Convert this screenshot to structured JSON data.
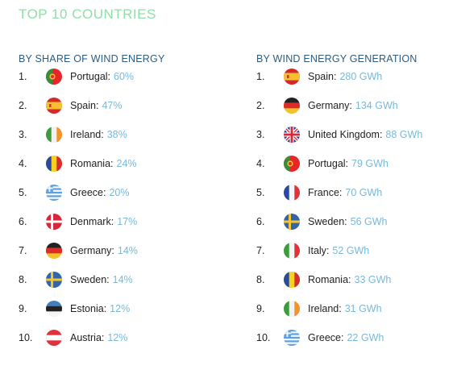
{
  "title": "TOP 10 COUNTRIES",
  "colors": {
    "title": "#8fe0a6",
    "heading": "#2e5b80",
    "value": "#7ab8d9"
  },
  "share": {
    "heading": "BY SHARE OF WIND ENERGY",
    "items": [
      {
        "rank": "1.",
        "country": "Portugal:",
        "value": "60%",
        "flag": "portugal-flag-icon"
      },
      {
        "rank": "2.",
        "country": "Spain:",
        "value": "47%",
        "flag": "spain-flag-icon"
      },
      {
        "rank": "3.",
        "country": "Ireland:",
        "value": "38%",
        "flag": "ireland-flag-icon"
      },
      {
        "rank": "4.",
        "country": "Romania:",
        "value": "24%",
        "flag": "romania-flag-icon"
      },
      {
        "rank": "5.",
        "country": "Greece:",
        "value": "20%",
        "flag": "greece-flag-icon"
      },
      {
        "rank": "6.",
        "country": "Denmark:",
        "value": "17%",
        "flag": "denmark-flag-icon"
      },
      {
        "rank": "7.",
        "country": "Germany:",
        "value": "14%",
        "flag": "germany-flag-icon"
      },
      {
        "rank": "8.",
        "country": "Sweden:",
        "value": "14%",
        "flag": "sweden-flag-icon"
      },
      {
        "rank": "9.",
        "country": "Estonia:",
        "value": "12%",
        "flag": "estonia-flag-icon"
      },
      {
        "rank": "10.",
        "country": "Austria:",
        "value": "12%",
        "flag": "austria-flag-icon"
      }
    ]
  },
  "generation": {
    "heading": "BY WIND ENERGY GENERATION",
    "items": [
      {
        "rank": "1.",
        "country": "Spain:",
        "value": "280 GWh",
        "flag": "spain-flag-icon"
      },
      {
        "rank": "2.",
        "country": "Germany:",
        "value": "134 GWh",
        "flag": "germany-flag-icon"
      },
      {
        "rank": "3.",
        "country": "United Kingdom:",
        "value": "88 GWh",
        "flag": "uk-flag-icon"
      },
      {
        "rank": "4.",
        "country": "Portugal:",
        "value": "79 GWh",
        "flag": "portugal-flag-icon"
      },
      {
        "rank": "5.",
        "country": "France:",
        "value": "70 GWh",
        "flag": "france-flag-icon"
      },
      {
        "rank": "6.",
        "country": "Sweden:",
        "value": "56 GWh",
        "flag": "sweden-flag-icon"
      },
      {
        "rank": "7.",
        "country": "Italy:",
        "value": "52 GWh",
        "flag": "italy-flag-icon"
      },
      {
        "rank": "8.",
        "country": "Romania:",
        "value": "33 GWh",
        "flag": "romania-flag-icon"
      },
      {
        "rank": "9.",
        "country": "Ireland:",
        "value": "31 GWh",
        "flag": "ireland-flag-icon"
      },
      {
        "rank": "10.",
        "country": "Greece:",
        "value": "22 GWh",
        "flag": "greece-flag-icon"
      }
    ]
  }
}
